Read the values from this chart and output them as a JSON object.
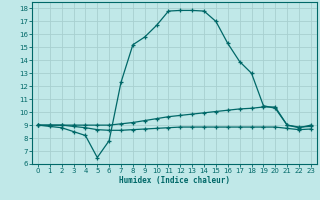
{
  "xlabel": "Humidex (Indice chaleur)",
  "xlim": [
    -0.5,
    23.5
  ],
  "ylim": [
    6,
    18.5
  ],
  "background_color": "#c0e8e8",
  "grid_color": "#a8d0d0",
  "line_color": "#006868",
  "curve1_x": [
    0,
    1,
    2,
    3,
    4,
    5,
    6,
    7,
    8,
    9,
    10,
    11,
    12,
    13,
    14,
    15,
    16,
    17,
    18,
    19,
    20,
    21,
    22,
    23
  ],
  "curve1_y": [
    9.0,
    8.9,
    8.8,
    8.5,
    8.2,
    6.5,
    7.8,
    12.3,
    15.2,
    15.8,
    16.7,
    17.8,
    17.85,
    17.85,
    17.8,
    17.0,
    15.3,
    13.9,
    13.0,
    10.5,
    10.3,
    9.0,
    8.8,
    9.0
  ],
  "curve2_x": [
    0,
    1,
    2,
    3,
    4,
    5,
    6,
    7,
    8,
    9,
    10,
    11,
    12,
    13,
    14,
    15,
    16,
    17,
    18,
    19,
    20,
    21,
    22,
    23
  ],
  "curve2_y": [
    9.0,
    9.0,
    9.0,
    9.0,
    9.0,
    9.0,
    9.0,
    9.1,
    9.2,
    9.35,
    9.5,
    9.65,
    9.75,
    9.85,
    9.95,
    10.05,
    10.15,
    10.25,
    10.3,
    10.4,
    10.4,
    9.0,
    8.85,
    8.9
  ],
  "curve3_x": [
    0,
    1,
    2,
    3,
    4,
    5,
    6,
    7,
    8,
    9,
    10,
    11,
    12,
    13,
    14,
    15,
    16,
    17,
    18,
    19,
    20,
    21,
    22,
    23
  ],
  "curve3_y": [
    9.0,
    9.0,
    9.0,
    8.9,
    8.8,
    8.65,
    8.6,
    8.6,
    8.65,
    8.7,
    8.75,
    8.8,
    8.85,
    8.85,
    8.85,
    8.85,
    8.85,
    8.85,
    8.85,
    8.85,
    8.85,
    8.75,
    8.65,
    8.7
  ]
}
